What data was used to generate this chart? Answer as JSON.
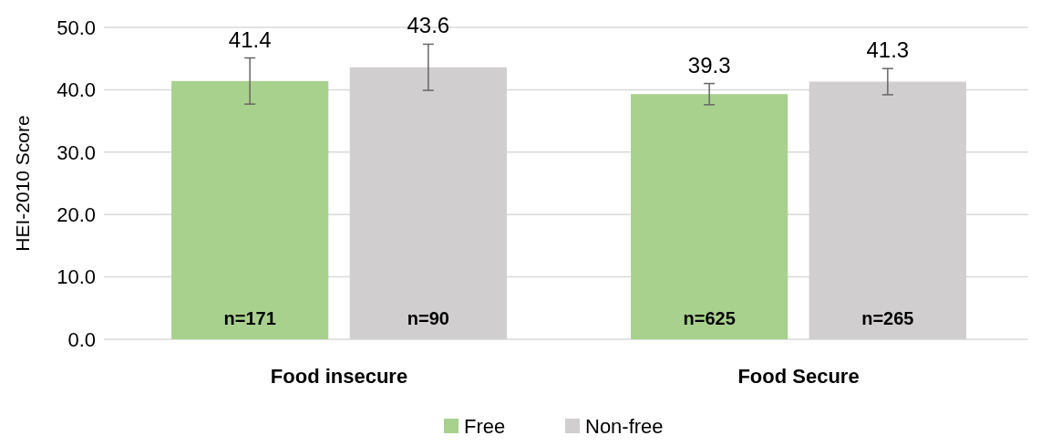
{
  "chart_data": {
    "type": "bar",
    "ylabel": "HEI-2010 Score",
    "categories": [
      "Food insecure",
      "Food Secure"
    ],
    "series": [
      {
        "name": "Free",
        "color": "#a9d18e",
        "values": [
          41.4,
          39.3
        ],
        "errors": [
          3.7,
          1.7
        ]
      },
      {
        "name": "Non-free",
        "color": "#d0cece",
        "values": [
          43.6,
          41.3
        ],
        "errors": [
          3.7,
          2.1
        ]
      }
    ],
    "ylim": [
      0,
      50
    ],
    "yticks": [
      {
        "value": 0,
        "label": "0.0"
      },
      {
        "value": 10,
        "label": "10.0"
      },
      {
        "value": 20,
        "label": "20.0"
      },
      {
        "value": 30,
        "label": "30.0"
      },
      {
        "value": 40,
        "label": "40.0"
      },
      {
        "value": 50,
        "label": "50.0"
      }
    ],
    "grid": "y",
    "legend": "bottom",
    "data_labels": true,
    "annotations": [
      "n=171",
      "n=90",
      "n=625",
      "n=265"
    ]
  }
}
